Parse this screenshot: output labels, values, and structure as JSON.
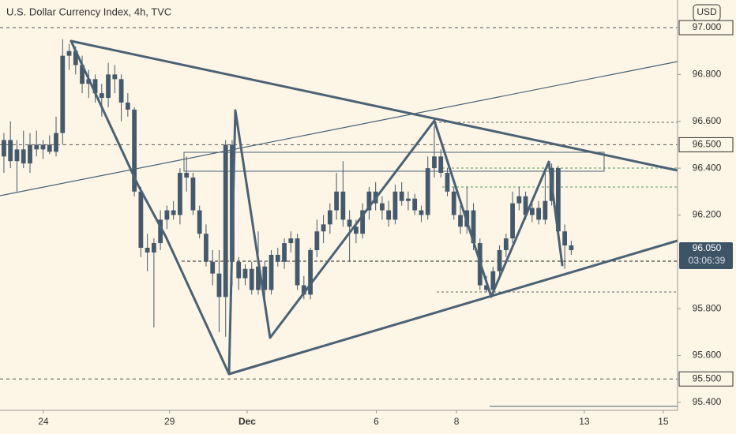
{
  "chart_data": {
    "type": "candlestick",
    "title": "U.S. Dollar Currency Index, 4h, TVC",
    "currency": "USD",
    "color": "#44596b",
    "open": [
      96.45,
      96.52,
      96.43,
      96.48,
      96.42,
      96.5,
      96.48,
      96.5,
      96.47,
      96.55,
      96.88,
      96.9,
      96.84,
      96.76,
      96.78,
      96.72,
      96.7,
      96.8,
      96.78,
      96.68,
      96.65,
      96.3,
      96.06,
      96.04,
      96.08,
      96.18,
      96.22,
      96.2,
      96.38,
      96.36,
      96.22,
      96.12,
      96.0,
      95.95,
      95.85,
      96.5,
      96.0,
      95.93,
      95.97,
      95.88,
      95.98,
      95.88,
      96.03,
      96.0,
      96.08,
      96.1,
      95.9,
      95.86,
      96.05,
      96.13,
      96.16,
      96.22,
      96.3,
      96.18,
      96.15,
      96.12,
      96.22,
      96.3,
      96.25,
      96.22,
      96.18,
      96.3,
      96.26,
      96.27,
      96.22,
      96.2,
      96.4,
      96.45,
      96.38,
      96.3,
      96.2,
      96.15,
      96.22,
      96.08,
      95.9,
      95.88,
      95.96,
      96.05,
      96.1,
      96.25,
      96.28,
      96.2,
      96.23,
      96.18,
      96.26,
      96.4,
      96.13,
      96.07
    ],
    "high": [
      96.55,
      96.6,
      96.52,
      96.56,
      96.55,
      96.56,
      96.52,
      96.54,
      96.62,
      96.95,
      96.93,
      96.92,
      96.88,
      96.82,
      96.8,
      96.76,
      96.85,
      96.84,
      96.8,
      96.72,
      96.66,
      96.32,
      96.12,
      96.1,
      96.22,
      96.24,
      96.26,
      96.4,
      96.45,
      96.38,
      96.24,
      96.16,
      96.05,
      96.05,
      96.52,
      96.52,
      96.02,
      95.99,
      96.0,
      96.13,
      96.0,
      96.05,
      96.06,
      96.1,
      96.13,
      96.12,
      95.94,
      96.06,
      96.18,
      96.2,
      96.25,
      96.38,
      96.43,
      96.22,
      96.18,
      96.25,
      96.32,
      96.34,
      96.28,
      96.26,
      96.33,
      96.34,
      96.3,
      96.29,
      96.24,
      96.45,
      96.58,
      96.48,
      96.4,
      96.32,
      96.24,
      96.32,
      96.25,
      96.1,
      95.94,
      95.98,
      96.07,
      96.12,
      96.3,
      96.32,
      96.3,
      96.25,
      96.26,
      96.4,
      96.42,
      96.41,
      96.16,
      96.09
    ],
    "low": [
      96.38,
      96.4,
      96.3,
      96.4,
      96.38,
      96.45,
      96.44,
      96.46,
      96.45,
      96.5,
      96.82,
      96.8,
      96.72,
      96.7,
      96.68,
      96.62,
      96.66,
      96.72,
      96.6,
      96.62,
      96.28,
      96.02,
      95.96,
      95.72,
      96.05,
      96.14,
      96.18,
      96.16,
      96.3,
      96.2,
      96.1,
      95.98,
      95.9,
      95.7,
      95.68,
      95.9,
      95.88,
      95.9,
      95.86,
      95.86,
      95.82,
      95.86,
      95.98,
      95.97,
      96.04,
      95.88,
      95.84,
      95.84,
      96.02,
      96.08,
      96.12,
      96.18,
      96.15,
      96.0,
      96.08,
      96.1,
      96.18,
      96.22,
      96.18,
      96.15,
      96.16,
      96.24,
      96.22,
      96.2,
      96.17,
      96.18,
      96.36,
      96.36,
      96.28,
      96.18,
      96.12,
      96.12,
      96.05,
      95.88,
      95.87,
      95.86,
      95.94,
      96.02,
      96.08,
      96.22,
      96.18,
      96.17,
      96.16,
      96.16,
      96.24,
      96.1,
      95.97,
      96.03
    ],
    "close": [
      96.52,
      96.43,
      96.48,
      96.42,
      96.5,
      96.48,
      96.5,
      96.47,
      96.55,
      96.88,
      96.9,
      96.84,
      96.76,
      96.78,
      96.72,
      96.7,
      96.8,
      96.78,
      96.68,
      96.65,
      96.3,
      96.06,
      96.04,
      96.08,
      96.18,
      96.22,
      96.2,
      96.38,
      96.36,
      96.22,
      96.12,
      96.0,
      95.95,
      95.85,
      96.5,
      96.0,
      95.93,
      95.97,
      95.88,
      95.98,
      95.88,
      96.03,
      96.0,
      96.08,
      96.1,
      95.9,
      95.86,
      96.05,
      96.13,
      96.16,
      96.22,
      96.3,
      96.18,
      96.15,
      96.12,
      96.22,
      96.3,
      96.25,
      96.22,
      96.18,
      96.3,
      96.26,
      96.27,
      96.22,
      96.2,
      96.4,
      96.45,
      96.38,
      96.3,
      96.2,
      96.15,
      96.22,
      96.08,
      95.9,
      95.88,
      95.96,
      96.05,
      96.1,
      96.25,
      96.28,
      96.2,
      96.23,
      96.18,
      96.26,
      96.4,
      96.13,
      96.07,
      96.05
    ],
    "xlim": [
      -0.6,
      103.3
    ],
    "xticks": [
      {
        "value": 6.05,
        "label": "24"
      },
      {
        "value": 25.4,
        "label": "29"
      },
      {
        "value": 37.3,
        "label": "Dec"
      },
      {
        "value": 57.1,
        "label": "6"
      },
      {
        "value": 69.4,
        "label": "8"
      },
      {
        "value": 89.0,
        "label": "13"
      },
      {
        "value": 101.1,
        "label": "15"
      }
    ],
    "ylim": [
      95.366,
      97.118
    ],
    "yticks": [
      {
        "value": 96.8,
        "label": "96.800"
      },
      {
        "value": 96.6,
        "label": "96.600"
      },
      {
        "value": 96.4,
        "label": "96.400"
      },
      {
        "value": 96.2,
        "label": "96.200"
      },
      {
        "value": 95.8,
        "label": "95.800"
      },
      {
        "value": 95.6,
        "label": "95.600"
      },
      {
        "value": 95.4,
        "label": "95.400"
      }
    ],
    "price_lines": [
      {
        "value": 97.0,
        "label": "97.000"
      },
      {
        "value": 96.5,
        "label": "96.500"
      },
      {
        "value": 95.5,
        "label": "95.500"
      }
    ],
    "current_price": {
      "value": 96.05,
      "label": "96.050",
      "countdown": "03:06:39"
    }
  }
}
